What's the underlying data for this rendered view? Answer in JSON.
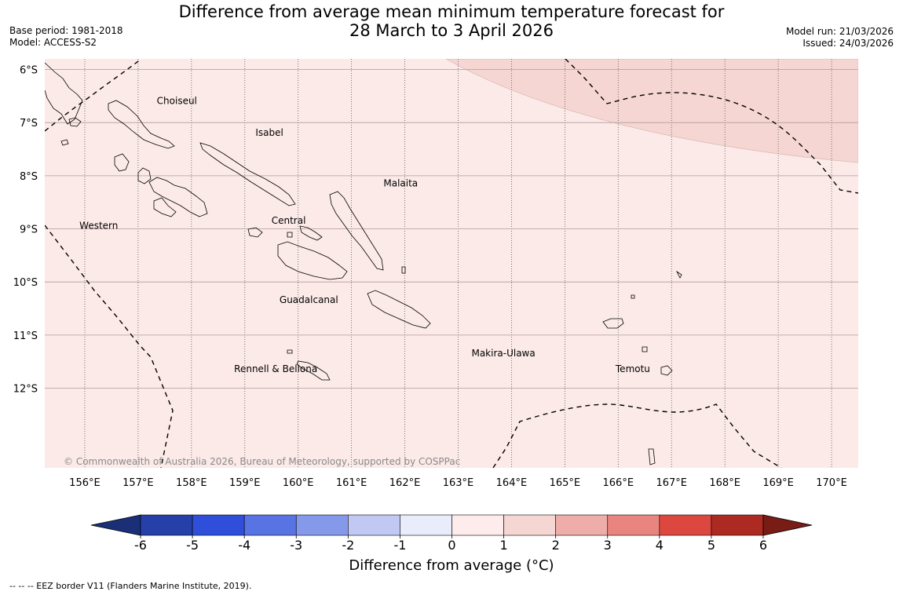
{
  "header": {
    "title_line1": "Difference from average mean minimum temperature forecast for",
    "title_line2": "28 March to 3 April 2026",
    "base_period": "Base period: 1981-2018",
    "model": "Model: ACCESS-S2",
    "model_run": "Model run: 21/03/2026",
    "issued": "Issued: 24/03/2026"
  },
  "map": {
    "lon_range": [
      155.25,
      170.5
    ],
    "lat_range": [
      -5.8,
      -13.5
    ],
    "lon_ticks": [
      156,
      157,
      158,
      159,
      160,
      161,
      162,
      163,
      164,
      165,
      166,
      167,
      168,
      169,
      170
    ],
    "lon_labels": [
      "156°E",
      "157°E",
      "158°E",
      "159°E",
      "160°E",
      "161°E",
      "162°E",
      "163°E",
      "164°E",
      "165°E",
      "166°E",
      "167°E",
      "168°E",
      "169°E",
      "170°E"
    ],
    "lat_ticks": [
      -6,
      -7,
      -8,
      -9,
      -10,
      -11,
      -12
    ],
    "lat_labels": [
      "6°S",
      "7°S",
      "8°S",
      "9°S",
      "10°S",
      "11°S",
      "12°S"
    ],
    "background_color": "#fbeae8",
    "anomaly_band_color": "#f5d6d2",
    "provinces": [
      {
        "name": "Choiseul",
        "lon": 157.35,
        "lat": -6.65
      },
      {
        "name": "Isabel",
        "lon": 159.2,
        "lat": -7.25
      },
      {
        "name": "Malaita",
        "lon": 161.6,
        "lat": -8.2
      },
      {
        "name": "Western",
        "lon": 155.9,
        "lat": -9.0
      },
      {
        "name": "Central",
        "lon": 159.5,
        "lat": -8.9
      },
      {
        "name": "Guadalcanal",
        "lon": 159.65,
        "lat": -10.4
      },
      {
        "name": "Makira-Ulawa",
        "lon": 163.25,
        "lat": -11.4
      },
      {
        "name": "Rennell & Bellona",
        "lon": 158.8,
        "lat": -11.7
      },
      {
        "name": "Temotu",
        "lon": 165.95,
        "lat": -11.7
      }
    ],
    "copyright": "© Commonwealth of Australia 2026, Bureau of Meteorology, supported by COSPPac"
  },
  "colorbar": {
    "ticks": [
      "-6",
      "-5",
      "-4",
      "-3",
      "-2",
      "-1",
      "0",
      "1",
      "2",
      "3",
      "4",
      "5",
      "6"
    ],
    "colors": [
      "#2540a8",
      "#2f4fdb",
      "#5873e3",
      "#8599ea",
      "#c0c8f3",
      "#e9ecfb",
      "#fdeceb",
      "#f5d6d2",
      "#efadaa",
      "#e8857f",
      "#dc4840",
      "#ad2a22"
    ],
    "low_extend_color": "#1a2f78",
    "high_extend_color": "#7a1c16",
    "label": "Difference from average ($^\\circ$C)",
    "label_display": "Difference from average (°C)"
  },
  "legend": {
    "eez": "--  --  -- EEZ border V11 (Flanders Marine Institute, 2019)."
  }
}
